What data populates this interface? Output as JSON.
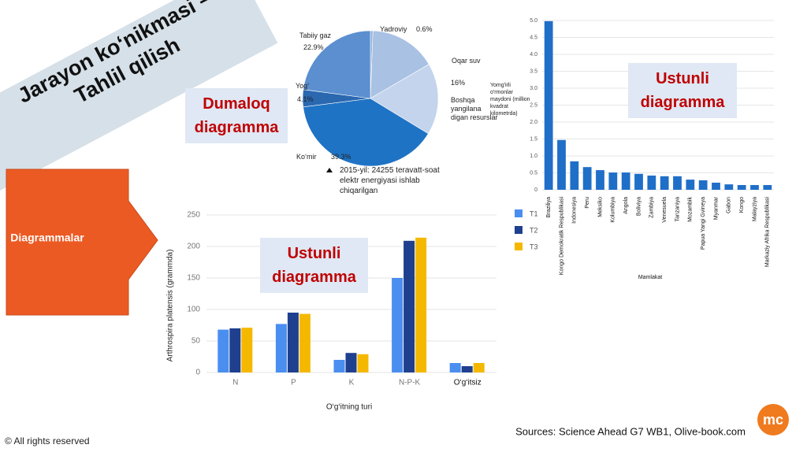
{
  "slide": {
    "banner_title": "Jarayon ko‘nikmasi – Tahlil qilish",
    "arrow_label": "Diagrammalar",
    "overlay_labels": [
      "Dumaloq diagramma",
      "Ustunli diagramma",
      "Ustunli diagramma"
    ],
    "copyright": "© All rights reserved",
    "sources": "Sources: Science Ahead G7 WB1, Olive-book.com",
    "logo": "mc"
  },
  "chart_data": [
    {
      "type": "pie",
      "note": "2015-yil: 24255 teravatt-soat elektr energiyasi ishlab chiqarilgan",
      "categories": [
        "Yadroviy",
        "Oqar suv",
        "Boshqa yangilana digan resurslar",
        "Ko‘mir",
        "Yog‘",
        "Tabiiy gaz"
      ],
      "values": [
        0.6,
        16,
        17.1,
        39.3,
        4.1,
        22.9
      ],
      "value_labels": [
        "0.6%",
        "16%",
        null,
        "39.3%",
        "4.1%",
        "22.9%"
      ],
      "colors": [
        "#8fb0dc",
        "#a9c1e3",
        "#c3d4ec",
        "#1f73c4",
        "#2a68b0",
        "#5b8fcf"
      ]
    },
    {
      "type": "bar",
      "ylabel": "Yomg'irli o'rmonlar maydoni (million kvadrat kilometrda)",
      "xlabel": "Mamlakat",
      "categories": [
        "Braziliya",
        "Kongo Demokratik Respublikasi",
        "Indonesiya",
        "Peru",
        "Meksiko",
        "Kolumbiya",
        "Angola",
        "Boliviya",
        "Zambiya",
        "Venesuela",
        "Tanzaniya",
        "Mozambik",
        "Papua Yangi Gvineya",
        "Myanmar",
        "Gabon",
        "Kongo",
        "Malayziya",
        "Markaziy Afrika Respublikasi"
      ],
      "values": [
        4.98,
        1.47,
        0.84,
        0.67,
        0.58,
        0.51,
        0.51,
        0.47,
        0.42,
        0.4,
        0.4,
        0.3,
        0.28,
        0.21,
        0.16,
        0.14,
        0.14,
        0.14
      ],
      "color": "#1f6fc8",
      "ylim": [
        0,
        5
      ],
      "yticks": [
        0,
        0.5,
        {
          "value": 1,
          "label": "1.0"
        },
        1.5,
        {
          "value": 2,
          "label": "2.0"
        },
        2.5,
        {
          "value": 3,
          "label": "3.0"
        },
        3.5,
        {
          "value": 4,
          "label": "4.0"
        },
        4.5,
        {
          "value": 5,
          "label": "5.0"
        }
      ],
      "grid": true
    },
    {
      "type": "grouped-bar",
      "ylabel": "Arthrospira platensis (grammda)",
      "xlabel": "O‘g‘itning turi",
      "categories": [
        "N",
        "P",
        "K",
        "N-P-K",
        "O‘g‘itsiz"
      ],
      "series": [
        {
          "name": "T1",
          "color": "#4a8ef0",
          "values": [
            68,
            77,
            20,
            150,
            15
          ]
        },
        {
          "name": "T2",
          "color": "#1f3f8f",
          "values": [
            70,
            95,
            31,
            209,
            10
          ]
        },
        {
          "name": "T3",
          "color": "#f5b800",
          "values": [
            71,
            93,
            29,
            214,
            15
          ]
        }
      ],
      "ylim": [
        0,
        250
      ],
      "yticks": [
        0,
        50,
        100,
        150,
        200,
        250
      ],
      "grid": true
    }
  ]
}
